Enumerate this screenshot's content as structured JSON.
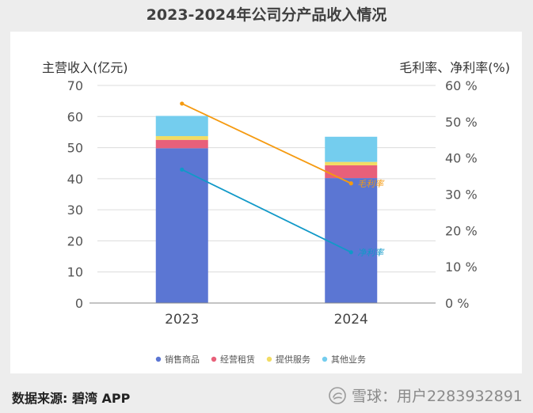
{
  "page": {
    "title": "2023-2024年公司分产品收入情况",
    "source": "数据来源: 碧湾 APP",
    "attribution": "雪球：用户2283932891",
    "attribution_icon": "snowball-logo-icon"
  },
  "chart_data": {
    "type": "bar",
    "stacked": true,
    "title": "2023-2024年公司分产品收入情况",
    "ylabel_left": "主营收入(亿元)",
    "ylabel_right": "毛利率、净利率(%)",
    "categories": [
      "2023",
      "2024"
    ],
    "ylim_left": [
      0,
      70
    ],
    "yticks_left": [
      "0",
      "10",
      "20",
      "30",
      "40",
      "50",
      "60",
      "70"
    ],
    "ylim_right": [
      0,
      60
    ],
    "yticks_right": [
      "0 %",
      "10 %",
      "20 %",
      "30 %",
      "40 %",
      "50 %",
      "60 %"
    ],
    "grid": true,
    "legend_position": "bottom",
    "series": [
      {
        "name": "销售商品",
        "color": "#5b76d3",
        "values": [
          49.8,
          40.2
        ]
      },
      {
        "name": "经营租赁",
        "color": "#e8607a",
        "values": [
          2.7,
          4.1
        ]
      },
      {
        "name": "提供服务",
        "color": "#f2dc63",
        "values": [
          1.2,
          1.1
        ]
      },
      {
        "name": "其他业务",
        "color": "#74cdee",
        "values": [
          6.5,
          8.1
        ]
      }
    ],
    "lines": [
      {
        "name": "毛利率",
        "axis": "right",
        "color": "#f59a10",
        "values": [
          55.0,
          33.0
        ]
      },
      {
        "name": "净利率",
        "axis": "right",
        "color": "#1199c8",
        "values": [
          36.8,
          14.0
        ]
      }
    ]
  }
}
